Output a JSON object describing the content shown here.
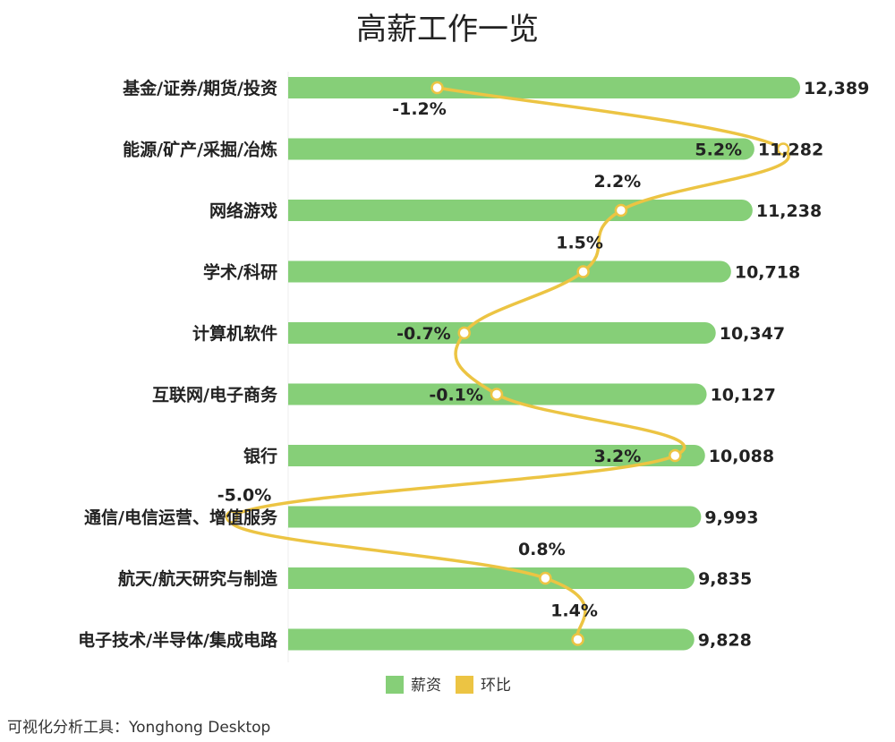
{
  "chart_data": {
    "type": "bar",
    "orientation": "horizontal",
    "title": "高薪工作一览",
    "categories": [
      "基金/证券/期货/投资",
      "能源/矿产/采掘/冶炼",
      "网络游戏",
      "学术/科研",
      "计算机软件",
      "互联网/电子商务",
      "银行",
      "通信/电信运营、增值服务",
      "航天/航天研究与制造",
      "电子技术/半导体/集成电路"
    ],
    "series": [
      {
        "name": "薪资",
        "type": "bar",
        "color": "#86cf78",
        "values": [
          12389,
          11282,
          11238,
          10718,
          10347,
          10127,
          10088,
          9993,
          9835,
          9828
        ],
        "labels": [
          "12,389",
          "11,282",
          "11,238",
          "10,718",
          "10,347",
          "10,127",
          "10,088",
          "9,993",
          "9,835",
          "9,828"
        ]
      },
      {
        "name": "环比",
        "type": "line",
        "color": "#ecc443",
        "values": [
          -1.2,
          5.2,
          2.2,
          1.5,
          -0.7,
          -0.1,
          3.2,
          -5.0,
          0.8,
          1.4
        ],
        "labels": [
          "-1.2%",
          "5.2%",
          "2.2%",
          "1.5%",
          "-0.7%",
          "-0.1%",
          "3.2%",
          "-5.0%",
          "0.8%",
          "1.4%"
        ]
      }
    ],
    "legend": {
      "placement": "bottom-center"
    },
    "grid": false
  },
  "footer": "可视化分析工具：Yonghong Desktop"
}
